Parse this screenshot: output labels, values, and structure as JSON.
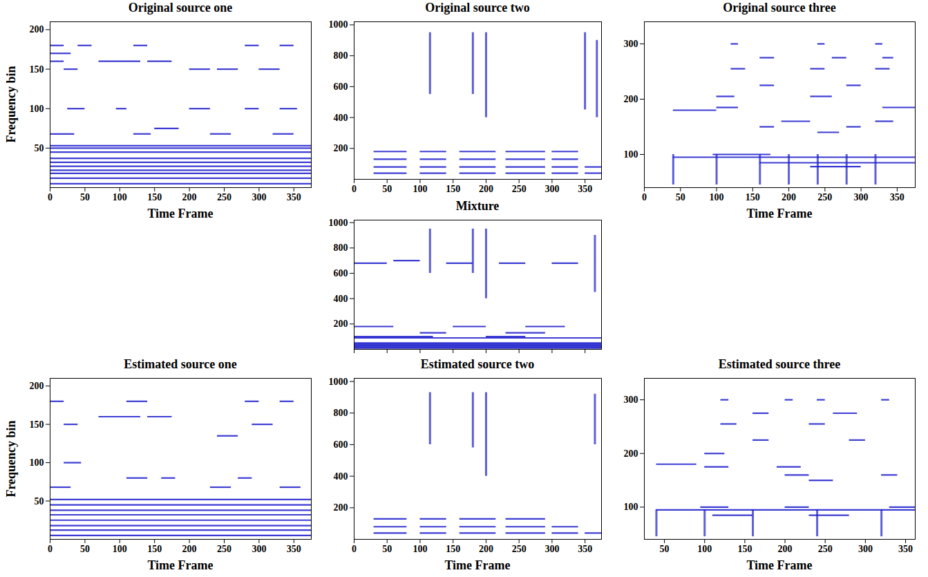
{
  "chart_data": [
    {
      "type": "spectrogram",
      "title": "Original source one",
      "xlabel": "Time Frame",
      "ylabel": "Frequency bin",
      "xlim": [
        0,
        375
      ],
      "ylim": [
        0,
        210
      ],
      "xticks": [
        0,
        50,
        100,
        150,
        200,
        250,
        300,
        350
      ],
      "yticks": [
        50,
        100,
        150,
        200
      ],
      "color": "#1a1acc",
      "lines": [
        {
          "f": 5,
          "t0": 0,
          "t1": 375
        },
        {
          "f": 12,
          "t0": 0,
          "t1": 375
        },
        {
          "f": 18,
          "t0": 0,
          "t1": 375
        },
        {
          "f": 22,
          "t0": 0,
          "t1": 375
        },
        {
          "f": 27,
          "t0": 0,
          "t1": 375
        },
        {
          "f": 32,
          "t0": 0,
          "t1": 375
        },
        {
          "f": 37,
          "t0": 0,
          "t1": 375
        },
        {
          "f": 45,
          "t0": 0,
          "t1": 375
        },
        {
          "f": 50,
          "t0": 0,
          "t1": 375
        },
        {
          "f": 53,
          "t0": 0,
          "t1": 375
        },
        {
          "f": 68,
          "t0": 0,
          "t1": 35
        },
        {
          "f": 68,
          "t0": 120,
          "t1": 145
        },
        {
          "f": 68,
          "t0": 230,
          "t1": 260
        },
        {
          "f": 68,
          "t0": 320,
          "t1": 350
        },
        {
          "f": 75,
          "t0": 150,
          "t1": 185
        },
        {
          "f": 100,
          "t0": 25,
          "t1": 50
        },
        {
          "f": 100,
          "t0": 95,
          "t1": 110
        },
        {
          "f": 100,
          "t0": 200,
          "t1": 230
        },
        {
          "f": 100,
          "t0": 280,
          "t1": 300
        },
        {
          "f": 100,
          "t0": 330,
          "t1": 355
        },
        {
          "f": 150,
          "t0": 20,
          "t1": 40
        },
        {
          "f": 150,
          "t0": 200,
          "t1": 230
        },
        {
          "f": 150,
          "t0": 240,
          "t1": 270
        },
        {
          "f": 150,
          "t0": 300,
          "t1": 330
        },
        {
          "f": 160,
          "t0": 0,
          "t1": 20
        },
        {
          "f": 160,
          "t0": 70,
          "t1": 130
        },
        {
          "f": 160,
          "t0": 140,
          "t1": 175
        },
        {
          "f": 170,
          "t0": 0,
          "t1": 30
        },
        {
          "f": 180,
          "t0": 0,
          "t1": 20
        },
        {
          "f": 180,
          "t0": 40,
          "t1": 60
        },
        {
          "f": 180,
          "t0": 120,
          "t1": 140
        },
        {
          "f": 180,
          "t0": 280,
          "t1": 300
        },
        {
          "f": 180,
          "t0": 330,
          "t1": 350
        }
      ],
      "bursts": []
    },
    {
      "type": "spectrogram",
      "title": "Original source two",
      "xlim": [
        0,
        375
      ],
      "ylim": [
        0,
        1020
      ],
      "xticks": [
        0,
        50,
        100,
        150,
        200,
        250,
        300,
        350
      ],
      "yticks": [
        200,
        400,
        600,
        800,
        1000
      ],
      "color": "#1a1acc",
      "lines": [
        {
          "f": 40,
          "t0": 30,
          "t1": 80
        },
        {
          "f": 80,
          "t0": 30,
          "t1": 80
        },
        {
          "f": 130,
          "t0": 30,
          "t1": 80
        },
        {
          "f": 180,
          "t0": 30,
          "t1": 80
        },
        {
          "f": 40,
          "t0": 100,
          "t1": 140
        },
        {
          "f": 80,
          "t0": 100,
          "t1": 140
        },
        {
          "f": 130,
          "t0": 100,
          "t1": 140
        },
        {
          "f": 180,
          "t0": 100,
          "t1": 140
        },
        {
          "f": 40,
          "t0": 160,
          "t1": 215
        },
        {
          "f": 80,
          "t0": 160,
          "t1": 215
        },
        {
          "f": 130,
          "t0": 160,
          "t1": 215
        },
        {
          "f": 180,
          "t0": 160,
          "t1": 215
        },
        {
          "f": 40,
          "t0": 230,
          "t1": 290
        },
        {
          "f": 80,
          "t0": 230,
          "t1": 290
        },
        {
          "f": 130,
          "t0": 230,
          "t1": 290
        },
        {
          "f": 180,
          "t0": 230,
          "t1": 290
        },
        {
          "f": 40,
          "t0": 300,
          "t1": 340
        },
        {
          "f": 80,
          "t0": 300,
          "t1": 340
        },
        {
          "f": 130,
          "t0": 300,
          "t1": 340
        },
        {
          "f": 180,
          "t0": 300,
          "t1": 340
        },
        {
          "f": 40,
          "t0": 350,
          "t1": 375
        },
        {
          "f": 80,
          "t0": 350,
          "t1": 375
        }
      ],
      "bursts": [
        {
          "t": 115,
          "f0": 550,
          "f1": 950
        },
        {
          "t": 180,
          "f0": 550,
          "f1": 950
        },
        {
          "t": 200,
          "f0": 400,
          "f1": 950
        },
        {
          "t": 350,
          "f0": 450,
          "f1": 950
        },
        {
          "t": 368,
          "f0": 400,
          "f1": 900
        }
      ]
    },
    {
      "type": "spectrogram",
      "title": "Original source three",
      "xlabel": "Time Frame",
      "xlim": [
        0,
        375
      ],
      "ylim": [
        40,
        340
      ],
      "xticks": [
        0,
        50,
        100,
        150,
        200,
        250,
        300,
        350
      ],
      "yticks": [
        100,
        200,
        300
      ],
      "color": "#1a1acc",
      "lines": [
        {
          "f": 95,
          "t0": 40,
          "t1": 375
        },
        {
          "f": 100,
          "t0": 95,
          "t1": 175
        },
        {
          "f": 85,
          "t0": 160,
          "t1": 375
        },
        {
          "f": 78,
          "t0": 230,
          "t1": 300
        },
        {
          "f": 180,
          "t0": 40,
          "t1": 100
        },
        {
          "f": 185,
          "t0": 100,
          "t1": 130
        },
        {
          "f": 185,
          "t0": 330,
          "t1": 375
        },
        {
          "f": 160,
          "t0": 190,
          "t1": 230
        },
        {
          "f": 160,
          "t0": 320,
          "t1": 345
        },
        {
          "f": 150,
          "t0": 160,
          "t1": 180
        },
        {
          "f": 150,
          "t0": 280,
          "t1": 300
        },
        {
          "f": 140,
          "t0": 240,
          "t1": 270
        },
        {
          "f": 205,
          "t0": 100,
          "t1": 125
        },
        {
          "f": 205,
          "t0": 230,
          "t1": 260
        },
        {
          "f": 225,
          "t0": 160,
          "t1": 180
        },
        {
          "f": 225,
          "t0": 280,
          "t1": 300
        },
        {
          "f": 255,
          "t0": 120,
          "t1": 140
        },
        {
          "f": 255,
          "t0": 230,
          "t1": 250
        },
        {
          "f": 255,
          "t0": 320,
          "t1": 340
        },
        {
          "f": 275,
          "t0": 160,
          "t1": 180
        },
        {
          "f": 275,
          "t0": 260,
          "t1": 280
        },
        {
          "f": 275,
          "t0": 330,
          "t1": 345
        },
        {
          "f": 300,
          "t0": 120,
          "t1": 130
        },
        {
          "f": 300,
          "t0": 240,
          "t1": 250
        },
        {
          "f": 300,
          "t0": 320,
          "t1": 330
        }
      ],
      "bursts": [
        {
          "t": 40,
          "f0": 45,
          "f1": 100
        },
        {
          "t": 100,
          "f0": 45,
          "f1": 100
        },
        {
          "t": 160,
          "f0": 45,
          "f1": 100
        },
        {
          "t": 200,
          "f0": 45,
          "f1": 100
        },
        {
          "t": 240,
          "f0": 45,
          "f1": 100
        },
        {
          "t": 280,
          "f0": 45,
          "f1": 100
        },
        {
          "t": 320,
          "f0": 45,
          "f1": 100
        }
      ]
    },
    {
      "type": "spectrogram",
      "title": "Mixture",
      "tick_labels": "y",
      "xlim": [
        0,
        375
      ],
      "ylim": [
        0,
        1020
      ],
      "xticks": [
        0,
        50,
        100,
        150,
        200,
        250,
        300,
        350
      ],
      "yticks": [
        200,
        400,
        600,
        800,
        1000
      ],
      "color": "#1a1acc",
      "lines": [
        {
          "f": 10,
          "t0": 0,
          "t1": 375
        },
        {
          "f": 20,
          "t0": 0,
          "t1": 375
        },
        {
          "f": 30,
          "t0": 0,
          "t1": 375
        },
        {
          "f": 40,
          "t0": 0,
          "t1": 375
        },
        {
          "f": 50,
          "t0": 0,
          "t1": 375
        },
        {
          "f": 90,
          "t0": 0,
          "t1": 375
        },
        {
          "f": 100,
          "t0": 0,
          "t1": 120
        },
        {
          "f": 100,
          "t0": 200,
          "t1": 260
        },
        {
          "f": 130,
          "t0": 100,
          "t1": 140
        },
        {
          "f": 130,
          "t0": 230,
          "t1": 290
        },
        {
          "f": 180,
          "t0": 0,
          "t1": 60
        },
        {
          "f": 180,
          "t0": 150,
          "t1": 200
        },
        {
          "f": 180,
          "t0": 260,
          "t1": 320
        },
        {
          "f": 680,
          "t0": 0,
          "t1": 50
        },
        {
          "f": 680,
          "t0": 140,
          "t1": 180
        },
        {
          "f": 680,
          "t0": 220,
          "t1": 260
        },
        {
          "f": 680,
          "t0": 300,
          "t1": 340
        },
        {
          "f": 700,
          "t0": 60,
          "t1": 100
        }
      ],
      "bursts": [
        {
          "t": 115,
          "f0": 600,
          "f1": 950
        },
        {
          "t": 180,
          "f0": 600,
          "f1": 950
        },
        {
          "t": 200,
          "f0": 400,
          "f1": 950
        },
        {
          "t": 365,
          "f0": 450,
          "f1": 900
        }
      ]
    },
    {
      "type": "spectrogram",
      "title": "Estimated source one",
      "xlabel": "Time Frame",
      "ylabel": "Frequency bin",
      "xlim": [
        0,
        375
      ],
      "ylim": [
        0,
        210
      ],
      "xticks": [
        0,
        50,
        100,
        150,
        200,
        250,
        300,
        350
      ],
      "yticks": [
        50,
        100,
        150,
        200
      ],
      "color": "#1a1acc",
      "lines": [
        {
          "f": 5,
          "t0": 0,
          "t1": 375
        },
        {
          "f": 12,
          "t0": 0,
          "t1": 375
        },
        {
          "f": 18,
          "t0": 0,
          "t1": 375
        },
        {
          "f": 25,
          "t0": 0,
          "t1": 375
        },
        {
          "f": 32,
          "t0": 0,
          "t1": 375
        },
        {
          "f": 38,
          "t0": 0,
          "t1": 375
        },
        {
          "f": 45,
          "t0": 0,
          "t1": 375
        },
        {
          "f": 52,
          "t0": 0,
          "t1": 375
        },
        {
          "f": 68,
          "t0": 0,
          "t1": 30
        },
        {
          "f": 68,
          "t0": 230,
          "t1": 260
        },
        {
          "f": 68,
          "t0": 330,
          "t1": 360
        },
        {
          "f": 80,
          "t0": 110,
          "t1": 140
        },
        {
          "f": 80,
          "t0": 160,
          "t1": 180
        },
        {
          "f": 80,
          "t0": 270,
          "t1": 290
        },
        {
          "f": 100,
          "t0": 20,
          "t1": 45
        },
        {
          "f": 135,
          "t0": 240,
          "t1": 270
        },
        {
          "f": 150,
          "t0": 20,
          "t1": 40
        },
        {
          "f": 150,
          "t0": 290,
          "t1": 320
        },
        {
          "f": 160,
          "t0": 70,
          "t1": 130
        },
        {
          "f": 160,
          "t0": 140,
          "t1": 175
        },
        {
          "f": 180,
          "t0": 0,
          "t1": 20
        },
        {
          "f": 180,
          "t0": 110,
          "t1": 140
        },
        {
          "f": 180,
          "t0": 280,
          "t1": 300
        },
        {
          "f": 180,
          "t0": 330,
          "t1": 350
        }
      ],
      "bursts": []
    },
    {
      "type": "spectrogram",
      "title": "Estimated source two",
      "xlabel": "Time Frame",
      "xlim": [
        0,
        375
      ],
      "ylim": [
        0,
        1020
      ],
      "xticks": [
        0,
        50,
        100,
        150,
        200,
        250,
        300,
        350
      ],
      "yticks": [
        200,
        400,
        600,
        800,
        1000
      ],
      "color": "#1a1acc",
      "lines": [
        {
          "f": 40,
          "t0": 30,
          "t1": 80
        },
        {
          "f": 80,
          "t0": 30,
          "t1": 80
        },
        {
          "f": 130,
          "t0": 30,
          "t1": 80
        },
        {
          "f": 40,
          "t0": 100,
          "t1": 140
        },
        {
          "f": 80,
          "t0": 100,
          "t1": 140
        },
        {
          "f": 130,
          "t0": 100,
          "t1": 140
        },
        {
          "f": 40,
          "t0": 160,
          "t1": 215
        },
        {
          "f": 80,
          "t0": 160,
          "t1": 215
        },
        {
          "f": 130,
          "t0": 160,
          "t1": 215
        },
        {
          "f": 40,
          "t0": 230,
          "t1": 290
        },
        {
          "f": 80,
          "t0": 230,
          "t1": 290
        },
        {
          "f": 130,
          "t0": 230,
          "t1": 290
        },
        {
          "f": 40,
          "t0": 300,
          "t1": 340
        },
        {
          "f": 80,
          "t0": 300,
          "t1": 340
        },
        {
          "f": 40,
          "t0": 350,
          "t1": 375
        }
      ],
      "bursts": [
        {
          "t": 115,
          "f0": 600,
          "f1": 930
        },
        {
          "t": 180,
          "f0": 580,
          "f1": 930
        },
        {
          "t": 200,
          "f0": 400,
          "f1": 930
        },
        {
          "t": 365,
          "f0": 600,
          "f1": 920
        }
      ]
    },
    {
      "type": "spectrogram",
      "title": "Estimated source three",
      "xlabel": "Time Frame",
      "xlim": [
        25,
        362
      ],
      "ylim": [
        40,
        340
      ],
      "xticks": [
        50,
        100,
        150,
        200,
        250,
        300,
        350
      ],
      "yticks": [
        100,
        200,
        300
      ],
      "color": "#1a1acc",
      "lines": [
        {
          "f": 95,
          "t0": 40,
          "t1": 362
        },
        {
          "f": 100,
          "t0": 95,
          "t1": 130
        },
        {
          "f": 100,
          "t0": 200,
          "t1": 230
        },
        {
          "f": 100,
          "t0": 330,
          "t1": 362
        },
        {
          "f": 85,
          "t0": 110,
          "t1": 160
        },
        {
          "f": 85,
          "t0": 230,
          "t1": 280
        },
        {
          "f": 180,
          "t0": 40,
          "t1": 90
        },
        {
          "f": 175,
          "t0": 100,
          "t1": 130
        },
        {
          "f": 175,
          "t0": 190,
          "t1": 220
        },
        {
          "f": 160,
          "t0": 200,
          "t1": 230
        },
        {
          "f": 160,
          "t0": 320,
          "t1": 340
        },
        {
          "f": 150,
          "t0": 230,
          "t1": 260
        },
        {
          "f": 200,
          "t0": 100,
          "t1": 125
        },
        {
          "f": 225,
          "t0": 160,
          "t1": 180
        },
        {
          "f": 225,
          "t0": 280,
          "t1": 300
        },
        {
          "f": 255,
          "t0": 120,
          "t1": 140
        },
        {
          "f": 255,
          "t0": 230,
          "t1": 250
        },
        {
          "f": 275,
          "t0": 160,
          "t1": 180
        },
        {
          "f": 275,
          "t0": 260,
          "t1": 290
        },
        {
          "f": 300,
          "t0": 120,
          "t1": 130
        },
        {
          "f": 300,
          "t0": 200,
          "t1": 210
        },
        {
          "f": 300,
          "t0": 240,
          "t1": 250
        },
        {
          "f": 300,
          "t0": 320,
          "t1": 330
        }
      ],
      "bursts": [
        {
          "t": 40,
          "f0": 45,
          "f1": 95
        },
        {
          "t": 100,
          "f0": 45,
          "f1": 95
        },
        {
          "t": 160,
          "f0": 45,
          "f1": 95
        },
        {
          "t": 240,
          "f0": 45,
          "f1": 95
        },
        {
          "t": 320,
          "f0": 45,
          "f1": 95
        }
      ]
    }
  ]
}
